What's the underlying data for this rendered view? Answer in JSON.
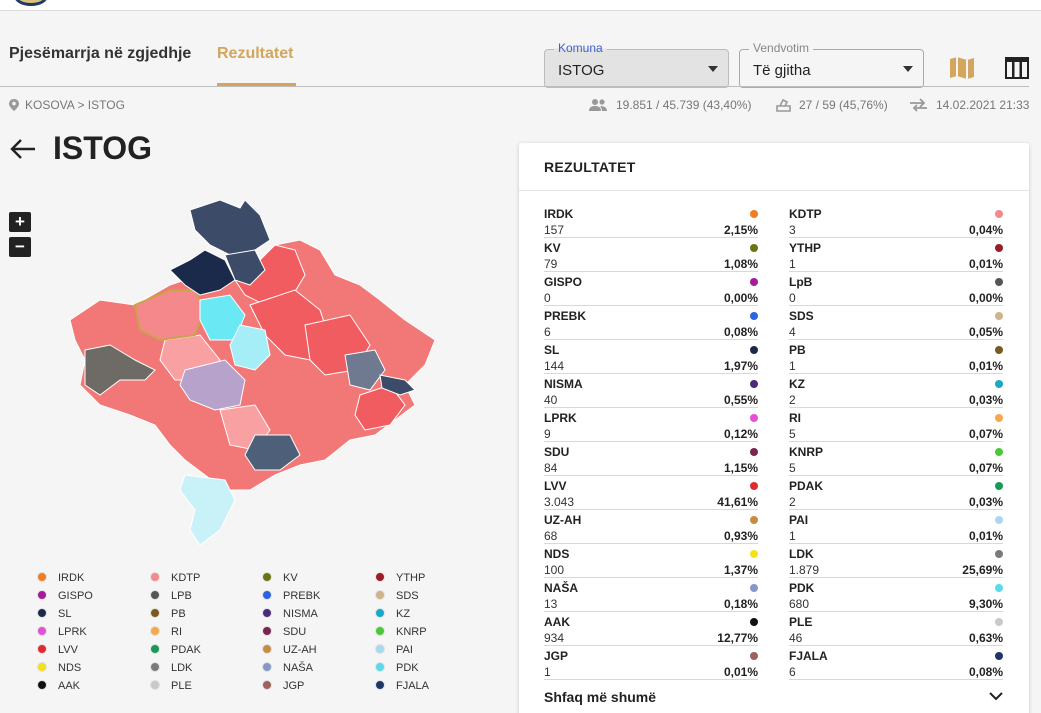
{
  "header": {
    "tabs": [
      {
        "label": "Pjesëmarrja në zgjedhje",
        "active": false
      },
      {
        "label": "Rezultatet",
        "active": true
      }
    ],
    "komuna": {
      "label": "Komuna",
      "value": "ISTOG"
    },
    "vendvotim": {
      "label": "Vendvotim",
      "value": "Të gjitha"
    },
    "accent_color": "#d3a55d"
  },
  "infobar": {
    "breadcrumb": "KOSOVA > ISTOG",
    "voters": "19.851 / 45.739 (43,40%)",
    "stations": "27 / 59 (45,76%)",
    "updated": "14.02.2021 21:33"
  },
  "page": {
    "title": "ISTOG",
    "zoom_in": "+",
    "zoom_out": "−"
  },
  "legend": [
    {
      "name": "IRDK",
      "color": "#f07c23"
    },
    {
      "name": "KDTP",
      "color": "#f4888b"
    },
    {
      "name": "KV",
      "color": "#6b7314"
    },
    {
      "name": "YTHP",
      "color": "#9a1b2a"
    },
    {
      "name": "GISPO",
      "color": "#a61a9a"
    },
    {
      "name": "LPB",
      "color": "#555555"
    },
    {
      "name": "PREBK",
      "color": "#2c63e0"
    },
    {
      "name": "SDS",
      "color": "#cfb38a"
    },
    {
      "name": "SL",
      "color": "#1b2a4a"
    },
    {
      "name": "PB",
      "color": "#7a5a1e"
    },
    {
      "name": "NISMA",
      "color": "#4a2a7a"
    },
    {
      "name": "KZ",
      "color": "#18a9c9"
    },
    {
      "name": "LPRK",
      "color": "#e34fd6"
    },
    {
      "name": "RI",
      "color": "#f6a94a"
    },
    {
      "name": "SDU",
      "color": "#7a2550"
    },
    {
      "name": "KNRP",
      "color": "#4cc73a"
    },
    {
      "name": "LVV",
      "color": "#e02a32"
    },
    {
      "name": "PDAK",
      "color": "#169a55"
    },
    {
      "name": "UZ-AH",
      "color": "#c98a44"
    },
    {
      "name": "PAI",
      "color": "#a9d9f0"
    },
    {
      "name": "NDS",
      "color": "#f2e21c"
    },
    {
      "name": "LDK",
      "color": "#7a7a7a"
    },
    {
      "name": "NAŠA",
      "color": "#8596c8"
    },
    {
      "name": "PDK",
      "color": "#58dbea"
    },
    {
      "name": "AAK",
      "color": "#111111"
    },
    {
      "name": "PLE",
      "color": "#c9c9c9"
    },
    {
      "name": "JGP",
      "color": "#a0605c"
    },
    {
      "name": "FJALA",
      "color": "#1e3566"
    }
  ],
  "results": {
    "title": "REZULTATET",
    "show_more": "Shfaq më shumë",
    "left": [
      {
        "name": "IRDK",
        "votes": "157",
        "pct": "2,15%",
        "color": "#f07c23"
      },
      {
        "name": "KV",
        "votes": "79",
        "pct": "1,08%",
        "color": "#6b7314"
      },
      {
        "name": "GISPO",
        "votes": "0",
        "pct": "0,00%",
        "color": "#a61a9a"
      },
      {
        "name": "PREBK",
        "votes": "6",
        "pct": "0,08%",
        "color": "#2c63e0"
      },
      {
        "name": "SL",
        "votes": "144",
        "pct": "1,97%",
        "color": "#1b2a4a"
      },
      {
        "name": "NISMA",
        "votes": "40",
        "pct": "0,55%",
        "color": "#4a2a7a"
      },
      {
        "name": "LPRK",
        "votes": "9",
        "pct": "0,12%",
        "color": "#e34fd6"
      },
      {
        "name": "SDU",
        "votes": "84",
        "pct": "1,15%",
        "color": "#7a2550"
      },
      {
        "name": "LVV",
        "votes": "3.043",
        "pct": "41,61%",
        "color": "#e02a32"
      },
      {
        "name": "UZ-AH",
        "votes": "68",
        "pct": "0,93%",
        "color": "#c98a44"
      },
      {
        "name": "NDS",
        "votes": "100",
        "pct": "1,37%",
        "color": "#f2e21c"
      },
      {
        "name": "NAŠA",
        "votes": "13",
        "pct": "0,18%",
        "color": "#8596c8"
      },
      {
        "name": "AAK",
        "votes": "934",
        "pct": "12,77%",
        "color": "#111111"
      },
      {
        "name": "JGP",
        "votes": "1",
        "pct": "0,01%",
        "color": "#a0605c"
      }
    ],
    "right": [
      {
        "name": "KDTP",
        "votes": "3",
        "pct": "0,04%",
        "color": "#f4888b"
      },
      {
        "name": "YTHP",
        "votes": "1",
        "pct": "0,01%",
        "color": "#9a1b2a"
      },
      {
        "name": "LpB",
        "votes": "0",
        "pct": "0,00%",
        "color": "#555555"
      },
      {
        "name": "SDS",
        "votes": "4",
        "pct": "0,05%",
        "color": "#cfb38a"
      },
      {
        "name": "PB",
        "votes": "1",
        "pct": "0,01%",
        "color": "#7a5a1e"
      },
      {
        "name": "KZ",
        "votes": "2",
        "pct": "0,03%",
        "color": "#18a9c9"
      },
      {
        "name": "RI",
        "votes": "5",
        "pct": "0,07%",
        "color": "#f6a94a"
      },
      {
        "name": "KNRP",
        "votes": "5",
        "pct": "0,07%",
        "color": "#4cc73a"
      },
      {
        "name": "PDAK",
        "votes": "2",
        "pct": "0,03%",
        "color": "#169a55"
      },
      {
        "name": "PAI",
        "votes": "1",
        "pct": "0,01%",
        "color": "#a9d9f0"
      },
      {
        "name": "LDK",
        "votes": "1.879",
        "pct": "25,69%",
        "color": "#7a7a7a"
      },
      {
        "name": "PDK",
        "votes": "680",
        "pct": "9,30%",
        "color": "#58dbea"
      },
      {
        "name": "PLE",
        "votes": "46",
        "pct": "0,63%",
        "color": "#c9c9c9"
      },
      {
        "name": "FJALA",
        "votes": "6",
        "pct": "0,08%",
        "color": "#1e3566"
      }
    ]
  }
}
